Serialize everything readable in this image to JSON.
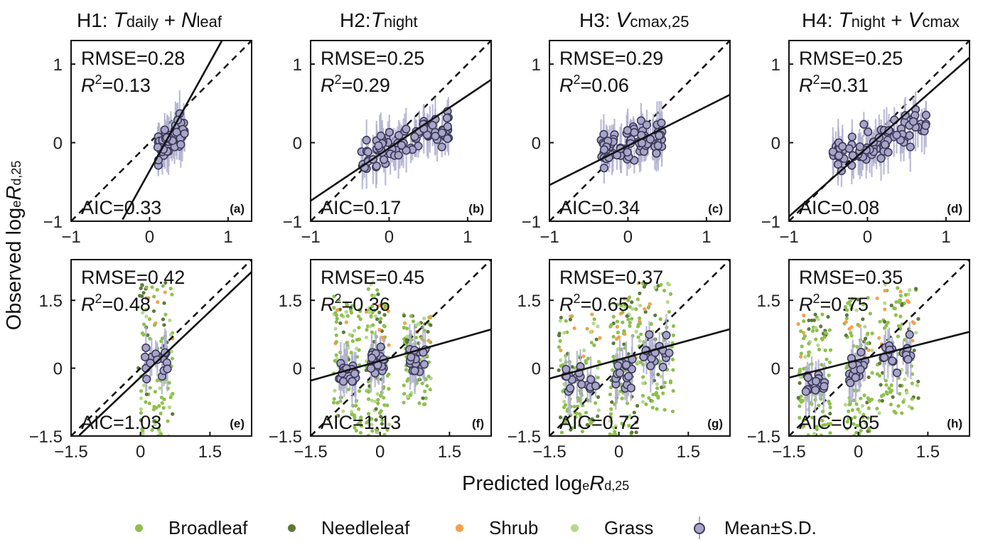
{
  "titles": {
    "h1": {
      "prefix": "H1:",
      "a": "T",
      "a_sub": "daily",
      "plus": "+",
      "b": "N",
      "b_sub": "leaf"
    },
    "h2": {
      "prefix": "H2:",
      "a": "T",
      "a_sub": "night"
    },
    "h3": {
      "prefix": "H3:",
      "a": "V",
      "a_sub": "cmax,25"
    },
    "h4": {
      "prefix": "H4:",
      "a": "T",
      "a_sub": "night",
      "plus": "+",
      "b": "V",
      "b_sub": "cmax"
    }
  },
  "ylabel": {
    "pre": "Observed log",
    "e": "e",
    "R": "R",
    "sub": "d,25"
  },
  "xlabel": {
    "pre": "Predicted log",
    "e": "e",
    "R": "R",
    "sub": "d,25"
  },
  "legend": {
    "broadleaf": "Broadleaf",
    "needleleaf": "Needleleaf",
    "shrub": "Shrub",
    "grass": "Grass",
    "mean": "Mean±S.D."
  },
  "colors": {
    "broadleaf": "#8dc04c",
    "needleleaf": "#5d7a3a",
    "shrub": "#f5a04a",
    "grass": "#b5d98c",
    "mean_fill": "#a8a5c8",
    "mean_edge": "#3b3b5a",
    "errorbar": "#b0b0d0"
  },
  "chart_data": [
    {
      "type": "scatter",
      "panel": "(a)",
      "row": "top",
      "rmse": "RMSE=0.28",
      "r2": "0.13",
      "aic": "AIC=0.33",
      "xlim": [
        -1,
        1.3
      ],
      "ylim": [
        -1,
        1.3
      ],
      "xticks": [
        "−1",
        "0",
        "1"
      ],
      "yticks": [
        "−1",
        "0",
        "1"
      ],
      "fit": {
        "intercept": -0.36,
        "slope": 1.8
      },
      "cluster": {
        "x_range": [
          0.1,
          0.45
        ],
        "y_range": [
          -0.75,
          0.8
        ],
        "n": 55
      }
    },
    {
      "type": "scatter",
      "panel": "(b)",
      "row": "top",
      "rmse": "RMSE=0.25",
      "r2": "0.29",
      "aic": "AIC=0.17",
      "xlim": [
        -1,
        1.3
      ],
      "ylim": [
        -1,
        1.3
      ],
      "xticks": [
        "−1",
        "0",
        "1"
      ],
      "yticks": [
        "−1",
        "0",
        "1"
      ],
      "fit": {
        "intercept": -0.07,
        "slope": 0.67
      },
      "cluster": {
        "x_range": [
          -0.4,
          0.8
        ],
        "y_range": [
          -0.7,
          0.8
        ],
        "n": 85
      }
    },
    {
      "type": "scatter",
      "panel": "(c)",
      "row": "top",
      "rmse": "RMSE=0.29",
      "r2": "0.06",
      "aic": "AIC=0.34",
      "xlim": [
        -1,
        1.3
      ],
      "ylim": [
        -1,
        1.3
      ],
      "xticks": [
        "−1",
        "0",
        "1"
      ],
      "yticks": [
        "−1",
        "0",
        "1"
      ],
      "fit": {
        "intercept": -0.04,
        "slope": 0.5
      },
      "cluster": {
        "x_range": [
          -0.35,
          0.45
        ],
        "y_range": [
          -0.75,
          0.8
        ],
        "n": 80
      }
    },
    {
      "type": "scatter",
      "panel": "(d)",
      "row": "top",
      "rmse": "RMSE=0.25",
      "r2": "0.31",
      "aic": "AIC=0.08",
      "xlim": [
        -1,
        1.3
      ],
      "ylim": [
        -1,
        1.3
      ],
      "xticks": [
        "−1",
        "0",
        "1"
      ],
      "yticks": [
        "−1",
        "0",
        "1"
      ],
      "fit": {
        "intercept": -0.06,
        "slope": 0.88
      },
      "cluster": {
        "x_range": [
          -0.45,
          0.75
        ],
        "y_range": [
          -0.75,
          0.8
        ],
        "n": 90
      }
    },
    {
      "type": "scatter",
      "panel": "(e)",
      "row": "bottom",
      "rmse": "RMSE=0.42",
      "r2": "0.48",
      "aic": "AIC=1.03",
      "xlim": [
        -1.5,
        2.4
      ],
      "ylim": [
        -1.5,
        2.4
      ],
      "xticks": [
        "−1.5",
        "0",
        "1.5"
      ],
      "yticks": [
        "−1.5",
        "0",
        "1.5"
      ],
      "fit": {
        "intercept": -0.2,
        "slope": 0.97
      },
      "clusters": [
        {
          "x_range": [
            -0.05,
            0.7
          ],
          "y_range": [
            -1.5,
            1.9
          ]
        }
      ]
    },
    {
      "type": "scatter",
      "panel": "(f)",
      "row": "bottom",
      "rmse": "RMSE=0.45",
      "r2": "0.36",
      "aic": "AIC=1.13",
      "xlim": [
        -1.5,
        2.4
      ],
      "ylim": [
        -1.5,
        2.4
      ],
      "xticks": [
        "−1.5",
        "0",
        "1.5"
      ],
      "yticks": [
        "−1.5",
        "0",
        "1.5"
      ],
      "fit": {
        "intercept": 0.16,
        "slope": 0.29
      },
      "clusters": [
        {
          "x_range": [
            -1.0,
            -0.4
          ],
          "y_range": [
            -1.5,
            1.6
          ]
        },
        {
          "x_range": [
            -0.3,
            0.2
          ],
          "y_range": [
            -1.5,
            1.9
          ]
        },
        {
          "x_range": [
            0.5,
            1.1
          ],
          "y_range": [
            -0.8,
            1.2
          ]
        }
      ]
    },
    {
      "type": "scatter",
      "panel": "(g)",
      "row": "bottom",
      "rmse": "RMSE=0.37",
      "r2": "0.65",
      "aic": "AIC=0.72",
      "xlim": [
        -1.5,
        2.4
      ],
      "ylim": [
        -1.5,
        2.4
      ],
      "xticks": [
        "−1.5",
        "0",
        "1.5"
      ],
      "yticks": [
        "−1.5",
        "0",
        "1.5"
      ],
      "fit": {
        "intercept": 0.19,
        "slope": 0.28
      },
      "clusters": [
        {
          "x_range": [
            -1.3,
            -0.4
          ],
          "y_range": [
            -1.5,
            1.2
          ]
        },
        {
          "x_range": [
            -0.2,
            0.4
          ],
          "y_range": [
            -1.5,
            1.6
          ]
        },
        {
          "x_range": [
            0.4,
            1.2
          ],
          "y_range": [
            -1.0,
            1.9
          ]
        }
      ]
    },
    {
      "type": "scatter",
      "panel": "(h)",
      "row": "bottom",
      "rmse": "RMSE=0.35",
      "r2": "0.75",
      "aic": "AIC=0.65",
      "xlim": [
        -1.5,
        2.4
      ],
      "ylim": [
        -1.5,
        2.4
      ],
      "xticks": [
        "−1.5",
        "0",
        "1.5"
      ],
      "yticks": [
        "−1.5",
        "0",
        "1.5"
      ],
      "fit": {
        "intercept": 0.18,
        "slope": 0.26
      },
      "clusters": [
        {
          "x_range": [
            -1.3,
            -0.6
          ],
          "y_range": [
            -1.5,
            1.2
          ]
        },
        {
          "x_range": [
            -0.3,
            0.3
          ],
          "y_range": [
            -1.5,
            1.6
          ]
        },
        {
          "x_range": [
            0.4,
            1.3
          ],
          "y_range": [
            -1.0,
            1.9
          ]
        }
      ]
    }
  ]
}
